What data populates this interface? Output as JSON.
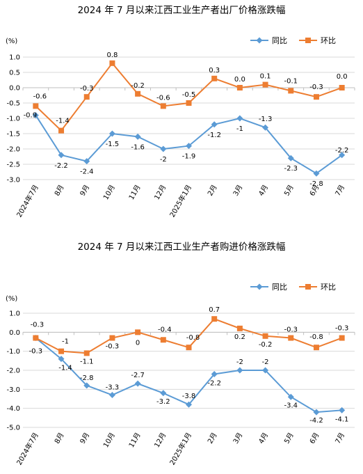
{
  "chart_data": [
    {
      "type": "line",
      "title": "2024 年 7 月以来江西工业生产者出厂价格涨跌幅",
      "ylabel": "(%)",
      "categories": [
        "2024年7月",
        "8月",
        "9月",
        "10月",
        "11月",
        "12月",
        "2025年1月",
        "2月",
        "3月",
        "4月",
        "5月",
        "6月",
        "7月"
      ],
      "ylim": [
        -3.0,
        1.0
      ],
      "yticks": [
        "1.0",
        "0.5",
        "0.0",
        "-0.5",
        "-1.0",
        "-1.5",
        "-2.0",
        "-2.5",
        "-3.0"
      ],
      "grid": true,
      "legend": "top-right",
      "series": [
        {
          "name": "同比",
          "color": "#5b9bd5",
          "marker": "diamond",
          "values": [
            -0.9,
            -2.2,
            -2.4,
            -1.5,
            -1.6,
            -2.0,
            -1.9,
            -1.2,
            -1.0,
            -1.3,
            -2.3,
            -2.8,
            -2.2
          ],
          "labels": [
            "-0.9",
            "-2.2",
            "-2.4",
            "-1.5",
            "-1.6",
            "-2",
            "-1.9",
            "-1.2",
            "-1",
            "-1.3",
            "-2.3",
            "-2.8",
            "-2.2"
          ]
        },
        {
          "name": "环比",
          "color": "#ed7d31",
          "marker": "square",
          "values": [
            -0.6,
            -1.4,
            -0.3,
            0.8,
            -0.2,
            -0.6,
            -0.5,
            0.3,
            0.0,
            0.1,
            -0.1,
            -0.3,
            0.0
          ],
          "labels": [
            "-0.6",
            "-1.4",
            "-0.3",
            "0.8",
            "-0.2",
            "-0.6",
            "-0.5",
            "0.3",
            "0.0",
            "0.1",
            "-0.1",
            "-0.3",
            "0.0"
          ]
        }
      ]
    },
    {
      "type": "line",
      "title": "2024 年 7 月以来江西工业生产者购进价格涨跌幅",
      "ylabel": "(%)",
      "categories": [
        "2024年7月",
        "8月",
        "9月",
        "10月",
        "11月",
        "12月",
        "2025年1月",
        "2月",
        "3月",
        "4月",
        "5月",
        "6月",
        "7月"
      ],
      "ylim": [
        -5.0,
        1.0
      ],
      "yticks": [
        "1.0",
        "0.0",
        "-1.0",
        "-2.0",
        "-3.0",
        "-4.0",
        "-5.0"
      ],
      "grid": true,
      "legend": "top-right",
      "series": [
        {
          "name": "同比",
          "color": "#5b9bd5",
          "marker": "diamond",
          "values": [
            -0.3,
            -1.4,
            -2.8,
            -3.3,
            -2.7,
            -3.2,
            -3.8,
            -2.2,
            -2.0,
            -2.0,
            -3.4,
            -4.2,
            -4.1
          ],
          "labels": [
            "-0.3",
            "-1.4",
            "-2.8",
            "-3.3",
            "-2.7",
            "-3.2",
            "-3.8",
            "-2.2",
            "-2",
            "-2",
            "-3.4",
            "-4.2",
            "-4.1"
          ]
        },
        {
          "name": "环比",
          "color": "#ed7d31",
          "marker": "square",
          "values": [
            -0.3,
            -1.0,
            -1.1,
            -0.3,
            0.0,
            -0.4,
            -0.8,
            0.7,
            0.2,
            -0.2,
            -0.3,
            -0.8,
            -0.3
          ],
          "labels": [
            "-0.3",
            "-1",
            "-1.1",
            "-0.3",
            "0",
            "-0.4",
            "-0.8",
            "0.7",
            "0.2",
            "-0.2",
            "-0.3",
            "-0.8",
            "-0.3"
          ]
        }
      ]
    }
  ]
}
